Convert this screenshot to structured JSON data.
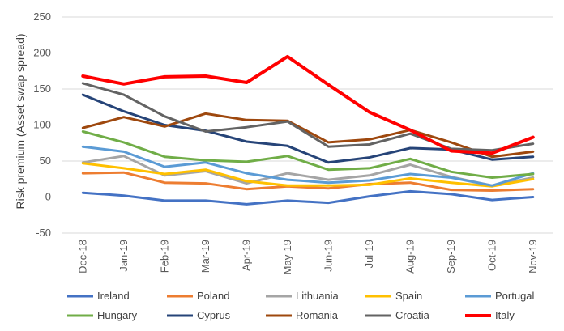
{
  "chart_data": {
    "type": "line",
    "title": "",
    "xlabel": "",
    "ylabel": "Risk premium (Asset swap spread)",
    "ylim": [
      -50,
      250
    ],
    "yticks": [
      -50,
      0,
      50,
      100,
      150,
      200,
      250
    ],
    "grid": "horizontal",
    "legend_position": "bottom",
    "categories": [
      "Dec-18",
      "Jan-19",
      "Feb-19",
      "Mar-19",
      "Apr-19",
      "May-19",
      "Jun-19",
      "Jul-19",
      "Aug-19",
      "Sep-19",
      "Oct-19",
      "Nov-19"
    ],
    "series": [
      {
        "name": "Ireland",
        "color": "#4472C4",
        "values": [
          6,
          2,
          -5,
          -5,
          -10,
          -5,
          -8,
          1,
          8,
          4,
          -4,
          0
        ]
      },
      {
        "name": "Poland",
        "color": "#ED7D31",
        "values": [
          33,
          34,
          20,
          19,
          11,
          15,
          12,
          18,
          20,
          10,
          9,
          11
        ]
      },
      {
        "name": "Lithuania",
        "color": "#A5A5A5",
        "values": [
          48,
          57,
          30,
          36,
          19,
          33,
          24,
          30,
          45,
          28,
          16,
          27
        ]
      },
      {
        "name": "Spain",
        "color": "#FFC000",
        "values": [
          47,
          40,
          32,
          38,
          22,
          16,
          16,
          17,
          26,
          20,
          15,
          25
        ]
      },
      {
        "name": "Portugal",
        "color": "#5B9BD5",
        "values": [
          70,
          63,
          42,
          48,
          33,
          24,
          20,
          23,
          32,
          27,
          16,
          33
        ]
      },
      {
        "name": "Hungary",
        "color": "#70AD47",
        "values": [
          91,
          76,
          56,
          51,
          49,
          57,
          38,
          40,
          53,
          35,
          27,
          32
        ]
      },
      {
        "name": "Cyprus",
        "color": "#264478",
        "values": [
          142,
          119,
          100,
          92,
          77,
          71,
          48,
          55,
          68,
          66,
          52,
          56
        ]
      },
      {
        "name": "Romania",
        "color": "#9E480E",
        "values": [
          96,
          111,
          98,
          116,
          107,
          106,
          76,
          80,
          93,
          76,
          56,
          63
        ]
      },
      {
        "name": "Croatia",
        "color": "#636363",
        "values": [
          158,
          142,
          112,
          91,
          97,
          105,
          70,
          73,
          88,
          67,
          65,
          74
        ]
      },
      {
        "name": "Italy",
        "color": "#FF0000",
        "values": [
          168,
          157,
          167,
          168,
          159,
          195,
          156,
          118,
          93,
          64,
          61,
          83
        ]
      }
    ]
  }
}
